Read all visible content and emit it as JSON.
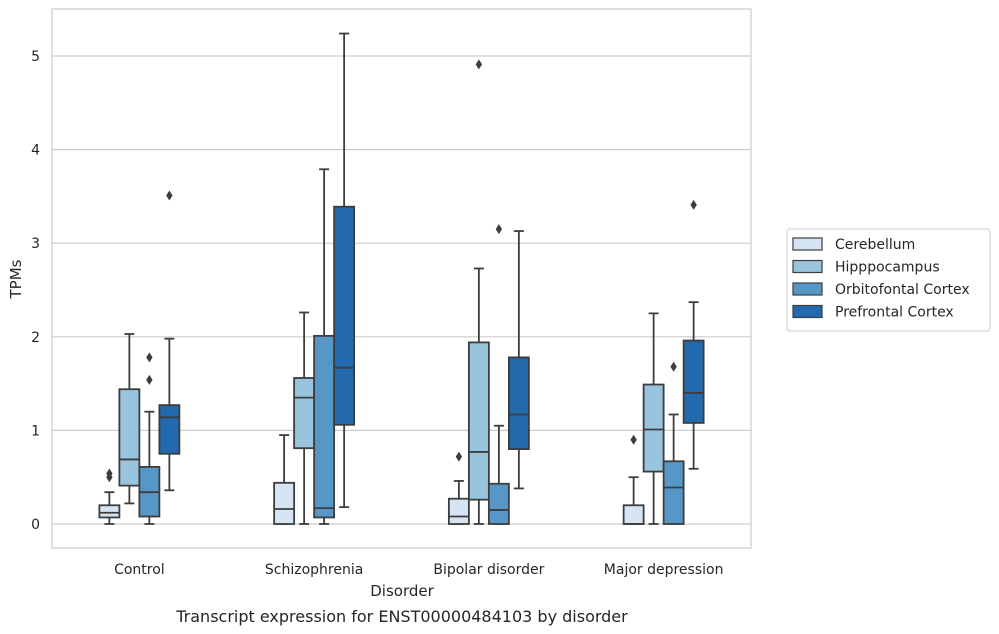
{
  "chart_data": {
    "type": "box",
    "xlabel": "Disorder",
    "ylabel": "TPMs",
    "caption": "Transcript expression for ENST00000484103 by disorder",
    "ylim": [
      -0.25,
      5.5
    ],
    "yticks": [
      0,
      1,
      2,
      3,
      4,
      5
    ],
    "grid": "horizontal",
    "legend_placement": "right",
    "categories": [
      "Control",
      "Schizophrenia",
      "Bipolar disorder",
      "Major depression"
    ],
    "series": [
      {
        "name": "Cerebellum",
        "color": "#d6e5f4",
        "boxes": [
          {
            "whislo": 0.0,
            "q1": 0.07,
            "med": 0.12,
            "q3": 0.2,
            "whishi": 0.34,
            "fliers": [
              0.5,
              0.54
            ]
          },
          {
            "whislo": 0.0,
            "q1": 0.0,
            "med": 0.16,
            "q3": 0.44,
            "whishi": 0.95,
            "fliers": []
          },
          {
            "whislo": 0.0,
            "q1": 0.0,
            "med": 0.08,
            "q3": 0.27,
            "whishi": 0.46,
            "fliers": [
              0.72
            ]
          },
          {
            "whislo": 0.0,
            "q1": 0.0,
            "med": 0.0,
            "q3": 0.2,
            "whishi": 0.5,
            "fliers": [
              0.9
            ]
          }
        ]
      },
      {
        "name": "Hipppocampus",
        "color": "#99c4de",
        "boxes": [
          {
            "whislo": 0.22,
            "q1": 0.41,
            "med": 0.69,
            "q3": 1.44,
            "whishi": 2.03,
            "fliers": []
          },
          {
            "whislo": 0.0,
            "q1": 0.81,
            "med": 1.35,
            "q3": 1.56,
            "whishi": 2.26,
            "fliers": []
          },
          {
            "whislo": 0.0,
            "q1": 0.26,
            "med": 0.77,
            "q3": 1.94,
            "whishi": 2.73,
            "fliers": [
              4.91
            ]
          },
          {
            "whislo": 0.0,
            "q1": 0.56,
            "med": 1.01,
            "q3": 1.49,
            "whishi": 2.25,
            "fliers": []
          }
        ]
      },
      {
        "name": "Orbitofontal Cortex",
        "color": "#5697c8",
        "boxes": [
          {
            "whislo": 0.0,
            "q1": 0.08,
            "med": 0.34,
            "q3": 0.61,
            "whishi": 1.2,
            "fliers": [
              1.54,
              1.78
            ]
          },
          {
            "whislo": 0.0,
            "q1": 0.07,
            "med": 0.17,
            "q3": 2.01,
            "whishi": 3.79,
            "fliers": []
          },
          {
            "whislo": 0.0,
            "q1": 0.0,
            "med": 0.15,
            "q3": 0.43,
            "whishi": 1.05,
            "fliers": [
              3.15
            ]
          },
          {
            "whislo": 0.0,
            "q1": 0.0,
            "med": 0.39,
            "q3": 0.67,
            "whishi": 1.17,
            "fliers": [
              1.68
            ]
          }
        ]
      },
      {
        "name": "Prefrontal Cortex",
        "color": "#2269ae",
        "boxes": [
          {
            "whislo": 0.36,
            "q1": 0.75,
            "med": 1.14,
            "q3": 1.27,
            "whishi": 1.98,
            "fliers": [
              3.51
            ]
          },
          {
            "whislo": 0.18,
            "q1": 1.06,
            "med": 1.67,
            "q3": 3.39,
            "whishi": 5.24,
            "fliers": []
          },
          {
            "whislo": 0.38,
            "q1": 0.8,
            "med": 1.17,
            "q3": 1.78,
            "whishi": 3.13,
            "fliers": []
          },
          {
            "whislo": 0.59,
            "q1": 1.08,
            "med": 1.4,
            "q3": 1.96,
            "whishi": 2.37,
            "fliers": [
              3.41
            ]
          }
        ]
      }
    ]
  }
}
